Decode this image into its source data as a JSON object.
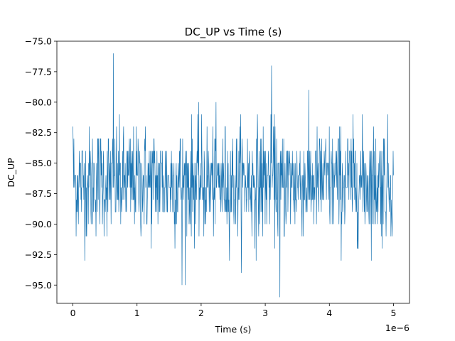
{
  "chart_data": {
    "type": "line",
    "title": "DC_UP vs Time (s)",
    "xlabel": "Time (s)",
    "ylabel": "DC_UP",
    "x_offset_label": "1e−6",
    "x_scale": 1e-06,
    "xlim": [
      -2.5e-07,
      5.25e-06
    ],
    "ylim": [
      -96.5,
      -75.0
    ],
    "x_ticks": [
      0,
      1e-06,
      2e-06,
      3e-06,
      4e-06,
      5e-06
    ],
    "x_tick_labels": [
      "0",
      "1",
      "2",
      "3",
      "4",
      "5"
    ],
    "y_ticks": [
      -95.0,
      -92.5,
      -90.0,
      -87.5,
      -85.0,
      -82.5,
      -80.0,
      -77.5,
      -75.0
    ],
    "y_tick_labels": [
      "−95.0",
      "−92.5",
      "−90.0",
      "−87.5",
      "−85.0",
      "−82.5",
      "−80.0",
      "−77.5",
      "−75.0"
    ],
    "grid": false,
    "color": "#1f77b4",
    "series": [
      {
        "x_start": 0,
        "x_end": 5e-06,
        "n_points": 1000,
        "mean": -86.5,
        "std": 2.3,
        "min": -96.0,
        "max": -76.0,
        "notable_points": [
          {
            "x": 6.3e-07,
            "y": -76.0
          },
          {
            "x": 3.1e-06,
            "y": -77.0
          },
          {
            "x": 3.23e-06,
            "y": -96.0
          },
          {
            "x": 1.7e-06,
            "y": -95.0
          },
          {
            "x": 0.0,
            "y": -82.0
          },
          {
            "x": 5e-06,
            "y": -86.0
          }
        ]
      }
    ]
  }
}
